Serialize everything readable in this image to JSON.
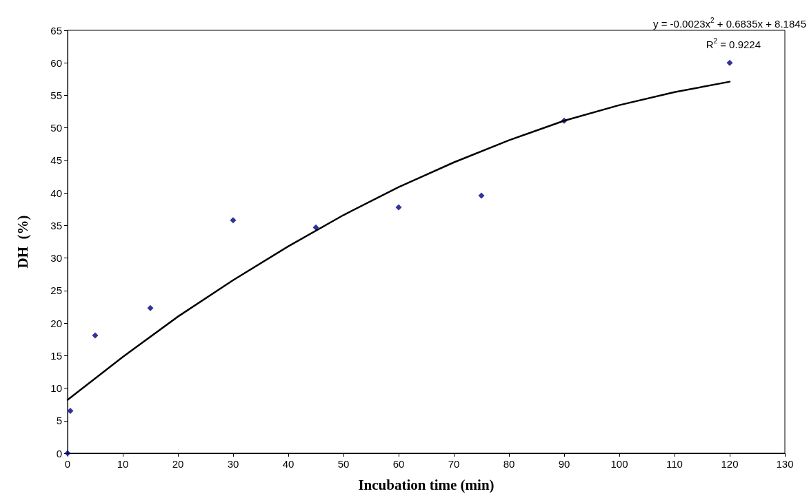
{
  "chart_data": {
    "type": "scatter",
    "xlabel": "Incubation time (min)",
    "ylabel": "DH  (%)",
    "xlim": [
      0,
      130
    ],
    "xticks": [
      0,
      10,
      20,
      30,
      40,
      50,
      60,
      70,
      80,
      90,
      100,
      110,
      120,
      130
    ],
    "ylim": [
      0,
      65
    ],
    "yticks": [
      0,
      5,
      10,
      15,
      20,
      25,
      30,
      35,
      40,
      45,
      50,
      55,
      60,
      65
    ],
    "grid": false,
    "annotations": [
      "y = -0.0023x$^{2}$ + 0.6835x + 8.1845",
      "R$^{2}$ = 0.9224"
    ],
    "series": [
      {
        "color": "#000080",
        "marker": "diamond",
        "x": [
          0,
          0.5,
          5,
          15,
          30,
          45,
          60,
          75,
          90,
          120
        ],
        "values": [
          0,
          6.5,
          18.1,
          22.3,
          35.8,
          34.7,
          37.8,
          39.6,
          51.1,
          60.0
        ]
      },
      {
        "type": "line",
        "color": "#000000",
        "marker": "none",
        "line_style": "solid",
        "x": [
          0,
          10,
          20,
          30,
          40,
          50,
          60,
          70,
          80,
          90,
          100,
          110,
          120
        ],
        "values": [
          8.2,
          14.8,
          21.0,
          26.6,
          31.8,
          36.6,
          40.9,
          44.7,
          48.1,
          51.1,
          53.5,
          55.5,
          57.1
        ]
      }
    ]
  }
}
